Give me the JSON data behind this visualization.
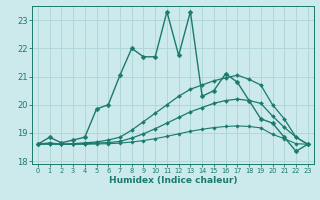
{
  "xlabel": "Humidex (Indice chaleur)",
  "xlim": [
    -0.5,
    23.5
  ],
  "ylim": [
    17.9,
    23.5
  ],
  "yticks": [
    18,
    19,
    20,
    21,
    22,
    23
  ],
  "xticks": [
    0,
    1,
    2,
    3,
    4,
    5,
    6,
    7,
    8,
    9,
    10,
    11,
    12,
    13,
    14,
    15,
    16,
    17,
    18,
    19,
    20,
    21,
    22,
    23
  ],
  "background_color": "#cce9ec",
  "grid_color": "#aed4d8",
  "line_color": "#1a7a6e",
  "curves": [
    {
      "x": [
        0,
        1,
        2,
        3,
        4,
        5,
        6,
        7,
        8,
        9,
        10,
        11,
        12,
        13,
        14,
        15,
        16,
        17,
        18,
        19,
        20,
        21,
        22,
        23
      ],
      "y": [
        18.6,
        18.85,
        18.65,
        18.75,
        18.85,
        19.85,
        20.0,
        21.05,
        22.0,
        21.7,
        21.7,
        23.3,
        21.75,
        23.3,
        20.3,
        20.5,
        21.1,
        20.8,
        20.15,
        19.5,
        19.35,
        18.85,
        18.35,
        18.6
      ]
    },
    {
      "x": [
        0,
        1,
        2,
        3,
        4,
        5,
        6,
        7,
        8,
        9,
        10,
        11,
        12,
        13,
        14,
        15,
        16,
        17,
        18,
        19,
        20,
        21,
        22,
        23
      ],
      "y": [
        18.6,
        18.65,
        18.6,
        18.62,
        18.65,
        18.68,
        18.75,
        18.85,
        19.1,
        19.4,
        19.7,
        20.0,
        20.3,
        20.55,
        20.7,
        20.85,
        20.95,
        21.05,
        20.9,
        20.7,
        20.0,
        19.5,
        18.85,
        18.6
      ]
    },
    {
      "x": [
        0,
        1,
        2,
        3,
        4,
        5,
        6,
        7,
        8,
        9,
        10,
        11,
        12,
        13,
        14,
        15,
        16,
        17,
        18,
        19,
        20,
        21,
        22,
        23
      ],
      "y": [
        18.6,
        18.62,
        18.6,
        18.61,
        18.62,
        18.64,
        18.66,
        18.7,
        18.82,
        18.97,
        19.15,
        19.35,
        19.55,
        19.75,
        19.9,
        20.05,
        20.15,
        20.2,
        20.15,
        20.05,
        19.6,
        19.2,
        18.85,
        18.6
      ]
    },
    {
      "x": [
        0,
        1,
        2,
        3,
        4,
        5,
        6,
        7,
        8,
        9,
        10,
        11,
        12,
        13,
        14,
        15,
        16,
        17,
        18,
        19,
        20,
        21,
        22,
        23
      ],
      "y": [
        18.6,
        18.6,
        18.6,
        18.6,
        18.6,
        18.61,
        18.62,
        18.64,
        18.68,
        18.73,
        18.8,
        18.88,
        18.97,
        19.06,
        19.13,
        19.19,
        19.23,
        19.25,
        19.23,
        19.18,
        18.95,
        18.8,
        18.62,
        18.6
      ]
    }
  ]
}
